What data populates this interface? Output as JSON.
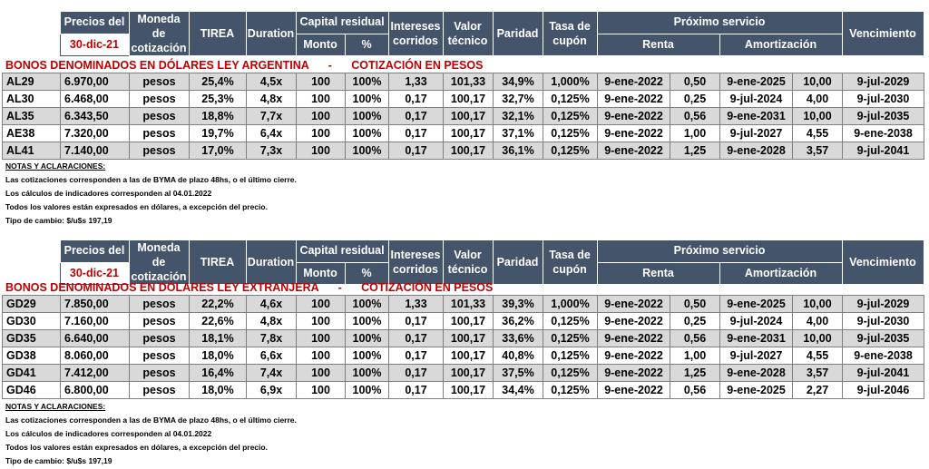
{
  "header": {
    "precios_del": "Precios del",
    "fecha": "30-dic-21",
    "moneda_1": "Moneda de",
    "moneda_2": "cotización",
    "tirea": "TIREA",
    "duration": "Duration",
    "capital_residual": "Capital residual",
    "monto": "Monto",
    "pct": "%",
    "intereses_1": "Intereses",
    "intereses_2": "corridos",
    "valor_1": "Valor",
    "valor_2": "técnico",
    "paridad": "Paridad",
    "tasa_1": "Tasa de",
    "tasa_2": "cupón",
    "proximo_servicio": "Próximo servicio",
    "renta": "Renta",
    "amortizacion": "Amortización",
    "vencimiento": "Vencimiento"
  },
  "section1": {
    "title": "BONOS DENOMINADOS EN DÓLARES LEY ARGENTINA",
    "dash": "-",
    "subtitle": "COTIZACIÓN EN PESOS",
    "rows": [
      [
        "AL29",
        "6.970,00",
        "pesos",
        "25,4%",
        "4,5x",
        "100",
        "100%",
        "1,33",
        "101,33",
        "34,9%",
        "1,000%",
        "9-ene-2022",
        "0,50",
        "9-ene-2025",
        "10,00",
        "9-jul-2029"
      ],
      [
        "AL30",
        "6.468,00",
        "pesos",
        "25,3%",
        "4,8x",
        "100",
        "100%",
        "0,17",
        "100,17",
        "32,7%",
        "0,125%",
        "9-ene-2022",
        "0,25",
        "9-jul-2024",
        "4,00",
        "9-jul-2030"
      ],
      [
        "AL35",
        "6.343,50",
        "pesos",
        "18,8%",
        "7,7x",
        "100",
        "100%",
        "0,17",
        "100,17",
        "32,1%",
        "0,125%",
        "9-ene-2022",
        "0,56",
        "9-ene-2031",
        "10,00",
        "9-jul-2035"
      ],
      [
        "AE38",
        "7.320,00",
        "pesos",
        "19,7%",
        "6,4x",
        "100",
        "100%",
        "0,17",
        "100,17",
        "37,1%",
        "0,125%",
        "9-ene-2022",
        "1,00",
        "9-jul-2027",
        "4,55",
        "9-ene-2038"
      ],
      [
        "AL41",
        "7.140,00",
        "pesos",
        "17,0%",
        "7,3x",
        "100",
        "100%",
        "0,17",
        "100,17",
        "36,1%",
        "0,125%",
        "9-ene-2022",
        "1,25",
        "9-ene-2028",
        "3,57",
        "9-jul-2041"
      ]
    ]
  },
  "section2": {
    "title": "BONOS DENOMINADOS EN DÓLARES LEY EXTRANJERA",
    "dash": "-",
    "subtitle": "COTIZACIÓN EN PESOS",
    "rows": [
      [
        "GD29",
        "7.850,00",
        "pesos",
        "22,2%",
        "4,6x",
        "100",
        "100%",
        "1,33",
        "101,33",
        "39,3%",
        "1,000%",
        "9-ene-2022",
        "0,50",
        "9-ene-2025",
        "10,00",
        "9-jul-2029"
      ],
      [
        "GD30",
        "7.160,00",
        "pesos",
        "22,6%",
        "4,8x",
        "100",
        "100%",
        "0,17",
        "100,17",
        "36,2%",
        "0,125%",
        "9-ene-2022",
        "0,25",
        "9-jul-2024",
        "4,00",
        "9-jul-2030"
      ],
      [
        "GD35",
        "6.640,00",
        "pesos",
        "18,1%",
        "7,8x",
        "100",
        "100%",
        "0,17",
        "100,17",
        "33,6%",
        "0,125%",
        "9-ene-2022",
        "0,56",
        "9-ene-2031",
        "10,00",
        "9-jul-2035"
      ],
      [
        "GD38",
        "8.060,00",
        "pesos",
        "18,0%",
        "6,6x",
        "100",
        "100%",
        "0,17",
        "100,17",
        "40,8%",
        "0,125%",
        "9-ene-2022",
        "1,00",
        "9-jul-2027",
        "4,55",
        "9-ene-2038"
      ],
      [
        "GD41",
        "7.412,00",
        "pesos",
        "16,4%",
        "7,4x",
        "100",
        "100%",
        "0,17",
        "100,17",
        "37,5%",
        "0,125%",
        "9-ene-2022",
        "1,25",
        "9-ene-2028",
        "3,57",
        "9-jul-2041"
      ],
      [
        "GD46",
        "6.800,00",
        "pesos",
        "18,0%",
        "6,9x",
        "100",
        "100%",
        "0,17",
        "100,17",
        "34,4%",
        "0,125%",
        "9-ene-2022",
        "0,56",
        "9-ene-2025",
        "2,27",
        "9-jul-2046"
      ]
    ]
  },
  "notes": {
    "title": "NOTAS Y ACLARACIONES:",
    "lines": [
      "Las cotizaciones corresponden a las de BYMA de plazo 48hs, o el último cierre.",
      "Los cálculos de indicadores corresponden al 04.01.2022",
      "Todos los valores están expresados en dólares, a excepción del precio.",
      "Tipo de cambio: $/u$s 197,19"
    ]
  }
}
